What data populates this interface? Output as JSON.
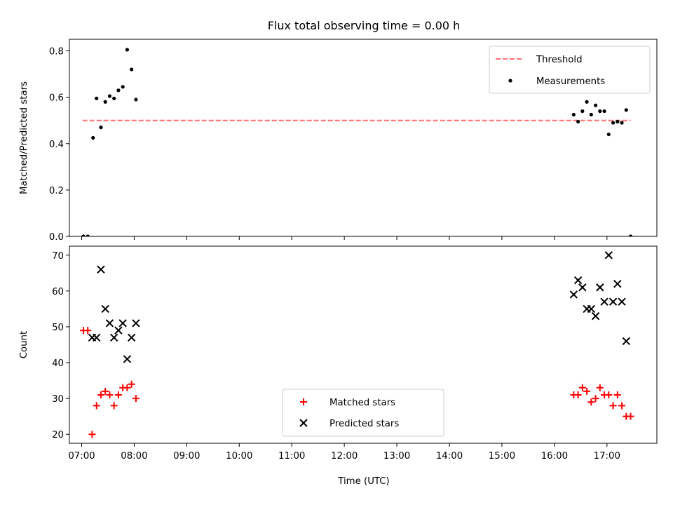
{
  "title": "Flux total observing time = 0.00 h",
  "x_axis": {
    "label": "Time (UTC)",
    "ticks": [
      "07:00",
      "08:00",
      "09:00",
      "10:00",
      "11:00",
      "12:00",
      "13:00",
      "14:00",
      "15:00",
      "16:00",
      "17:00"
    ]
  },
  "colors": {
    "threshold": "#ff6f6f",
    "measurements": "#000000",
    "matched": "#ff0000",
    "predicted": "#000000"
  },
  "chart_data": [
    {
      "type": "scatter",
      "title": "Flux total observing time = 0.00 h",
      "xlabel": "",
      "ylabel": "Matched/Predicted stars",
      "xlim": [
        "06:46",
        "17:57"
      ],
      "ylim": [
        0,
        0.85
      ],
      "yticks": [
        "0.0",
        "0.2",
        "0.4",
        "0.6",
        "0.8"
      ],
      "legend_position": "top-right",
      "series": [
        {
          "name": "Threshold",
          "kind": "dashed-line",
          "points": [
            [
              "07:01",
              0.5
            ],
            [
              "17:27",
              0.5
            ]
          ]
        },
        {
          "name": "Measurements",
          "kind": "dots",
          "points": [
            [
              "07:02",
              0.0
            ],
            [
              "07:07",
              0.0
            ],
            [
              "07:13",
              0.425
            ],
            [
              "07:17",
              0.595
            ],
            [
              "07:22",
              0.47
            ],
            [
              "07:27",
              0.58
            ],
            [
              "07:32",
              0.605
            ],
            [
              "07:37",
              0.595
            ],
            [
              "07:42",
              0.63
            ],
            [
              "07:47",
              0.645
            ],
            [
              "07:52",
              0.805
            ],
            [
              "07:57",
              0.72
            ],
            [
              "08:02",
              0.59
            ],
            [
              "16:22",
              0.525
            ],
            [
              "16:27",
              0.495
            ],
            [
              "16:32",
              0.54
            ],
            [
              "16:37",
              0.58
            ],
            [
              "16:42",
              0.525
            ],
            [
              "16:47",
              0.565
            ],
            [
              "16:52",
              0.54
            ],
            [
              "16:57",
              0.54
            ],
            [
              "17:02",
              0.44
            ],
            [
              "17:07",
              0.49
            ],
            [
              "17:12",
              0.495
            ],
            [
              "17:17",
              0.49
            ],
            [
              "17:22",
              0.545
            ],
            [
              "17:27",
              0.0
            ]
          ]
        }
      ]
    },
    {
      "type": "scatter",
      "title": "",
      "xlabel": "Time (UTC)",
      "ylabel": "Count",
      "xlim": [
        "06:46",
        "17:57"
      ],
      "ylim": [
        17.5,
        72.5
      ],
      "yticks": [
        "20",
        "30",
        "40",
        "50",
        "60",
        "70"
      ],
      "legend_position": "lower-center",
      "series": [
        {
          "name": "Matched stars",
          "marker": "plus",
          "points": [
            [
              "07:02",
              49
            ],
            [
              "07:07",
              49
            ],
            [
              "07:12",
              20
            ],
            [
              "07:17",
              28
            ],
            [
              "07:22",
              31
            ],
            [
              "07:27",
              32
            ],
            [
              "07:32",
              31
            ],
            [
              "07:37",
              28
            ],
            [
              "07:42",
              31
            ],
            [
              "07:47",
              33
            ],
            [
              "07:52",
              33
            ],
            [
              "07:57",
              34
            ],
            [
              "08:02",
              30
            ],
            [
              "16:22",
              31
            ],
            [
              "16:27",
              31
            ],
            [
              "16:32",
              33
            ],
            [
              "16:37",
              32
            ],
            [
              "16:42",
              29
            ],
            [
              "16:47",
              30
            ],
            [
              "16:52",
              33
            ],
            [
              "16:57",
              31
            ],
            [
              "17:02",
              31
            ],
            [
              "17:07",
              28
            ],
            [
              "17:12",
              31
            ],
            [
              "17:17",
              28
            ],
            [
              "17:22",
              25
            ],
            [
              "17:27",
              25
            ]
          ]
        },
        {
          "name": "Predicted stars",
          "marker": "x",
          "points": [
            [
              "07:12",
              47
            ],
            [
              "07:17",
              47
            ],
            [
              "07:22",
              66
            ],
            [
              "07:27",
              55
            ],
            [
              "07:32",
              51
            ],
            [
              "07:37",
              47
            ],
            [
              "07:42",
              49
            ],
            [
              "07:47",
              51
            ],
            [
              "07:52",
              41
            ],
            [
              "07:57",
              47
            ],
            [
              "08:02",
              51
            ],
            [
              "16:22",
              59
            ],
            [
              "16:27",
              63
            ],
            [
              "16:32",
              61
            ],
            [
              "16:37",
              55
            ],
            [
              "16:42",
              55
            ],
            [
              "16:47",
              53
            ],
            [
              "16:52",
              61
            ],
            [
              "16:57",
              57
            ],
            [
              "17:02",
              70
            ],
            [
              "17:07",
              57
            ],
            [
              "17:12",
              62
            ],
            [
              "17:17",
              57
            ],
            [
              "17:22",
              46
            ]
          ]
        }
      ]
    }
  ]
}
